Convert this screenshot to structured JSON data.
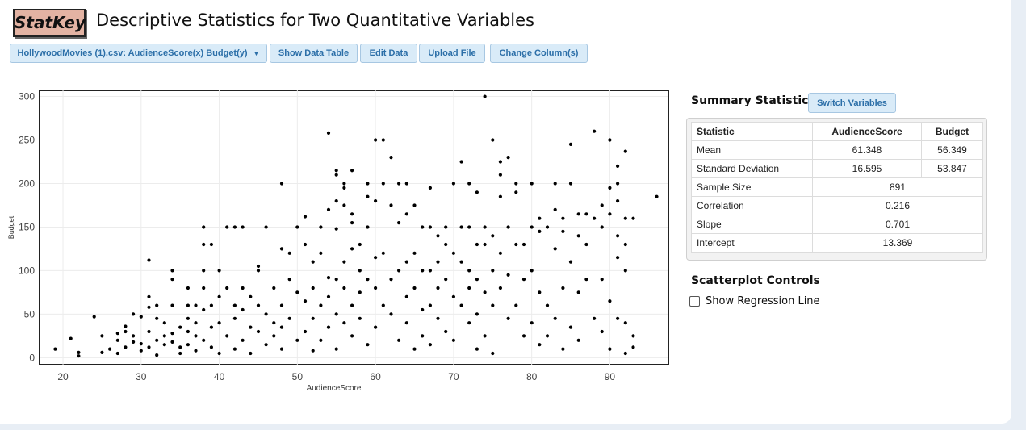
{
  "app": {
    "logo": "StatKey",
    "title": "Descriptive Statistics for Two Quantitative Variables"
  },
  "toolbar": {
    "dataset_label": "HollywoodMovies (1).csv: AudienceScore(x) Budget(y)",
    "show_table": "Show Data Table",
    "edit_data": "Edit Data",
    "upload": "Upload File",
    "change_columns": "Change Column(s)"
  },
  "summary": {
    "title": "Summary Statistics",
    "switch_label": "Switch Variables",
    "headers": [
      "Statistic",
      "AudienceScore",
      "Budget"
    ],
    "rows": [
      {
        "label": "Mean",
        "x": "61.348",
        "y": "56.349"
      },
      {
        "label": "Standard Deviation",
        "x": "16.595",
        "y": "53.847"
      }
    ],
    "single_rows": [
      {
        "label": "Sample Size",
        "value": "891"
      },
      {
        "label": "Correlation",
        "value": "0.216"
      },
      {
        "label": "Slope",
        "value": "0.701"
      },
      {
        "label": "Intercept",
        "value": "13.369"
      }
    ]
  },
  "controls": {
    "title": "Scatterplot Controls",
    "regression_label": "Show Regression Line",
    "regression_checked": false
  },
  "chart_data": {
    "type": "scatter",
    "xlabel": "AudienceScore",
    "ylabel": "Budget",
    "xlim": [
      17,
      97.5
    ],
    "ylim": [
      -8,
      307
    ],
    "xticks": [
      20,
      30,
      40,
      50,
      60,
      70,
      80,
      90
    ],
    "yticks": [
      0,
      50,
      100,
      150,
      200,
      250,
      300
    ],
    "grid": true,
    "points": [
      [
        19,
        10
      ],
      [
        21,
        22
      ],
      [
        22,
        2
      ],
      [
        22,
        6
      ],
      [
        24,
        47
      ],
      [
        25,
        6
      ],
      [
        25,
        25
      ],
      [
        26,
        10
      ],
      [
        27,
        5
      ],
      [
        27,
        20
      ],
      [
        27,
        28
      ],
      [
        28,
        12
      ],
      [
        28,
        30
      ],
      [
        28,
        36
      ],
      [
        29,
        50
      ],
      [
        29,
        18
      ],
      [
        29,
        25
      ],
      [
        30,
        47
      ],
      [
        30,
        8
      ],
      [
        30,
        16
      ],
      [
        31,
        112
      ],
      [
        31,
        70
      ],
      [
        31,
        58
      ],
      [
        31,
        30
      ],
      [
        31,
        12
      ],
      [
        32,
        60
      ],
      [
        32,
        45
      ],
      [
        32,
        20
      ],
      [
        32,
        3
      ],
      [
        33,
        15
      ],
      [
        33,
        25
      ],
      [
        33,
        40
      ],
      [
        34,
        100
      ],
      [
        34,
        90
      ],
      [
        34,
        60
      ],
      [
        34,
        28
      ],
      [
        34,
        18
      ],
      [
        35,
        5
      ],
      [
        35,
        12
      ],
      [
        35,
        35
      ],
      [
        36,
        80
      ],
      [
        36,
        60
      ],
      [
        36,
        45
      ],
      [
        36,
        30
      ],
      [
        36,
        15
      ],
      [
        37,
        60
      ],
      [
        37,
        25
      ],
      [
        37,
        8
      ],
      [
        37,
        40
      ],
      [
        38,
        150
      ],
      [
        38,
        130
      ],
      [
        38,
        100
      ],
      [
        38,
        80
      ],
      [
        38,
        55
      ],
      [
        38,
        20
      ],
      [
        39,
        130
      ],
      [
        39,
        60
      ],
      [
        39,
        35
      ],
      [
        39,
        12
      ],
      [
        40,
        100
      ],
      [
        40,
        70
      ],
      [
        40,
        40
      ],
      [
        40,
        5
      ],
      [
        41,
        150
      ],
      [
        41,
        80
      ],
      [
        41,
        25
      ],
      [
        42,
        150
      ],
      [
        42,
        60
      ],
      [
        42,
        10
      ],
      [
        42,
        45
      ],
      [
        43,
        150
      ],
      [
        43,
        80
      ],
      [
        43,
        55
      ],
      [
        43,
        20
      ],
      [
        44,
        70
      ],
      [
        44,
        35
      ],
      [
        44,
        5
      ],
      [
        45,
        105
      ],
      [
        45,
        100
      ],
      [
        45,
        60
      ],
      [
        45,
        30
      ],
      [
        46,
        150
      ],
      [
        46,
        50
      ],
      [
        46,
        15
      ],
      [
        47,
        80
      ],
      [
        47,
        40
      ],
      [
        47,
        25
      ],
      [
        48,
        200
      ],
      [
        48,
        125
      ],
      [
        48,
        60
      ],
      [
        48,
        35
      ],
      [
        48,
        10
      ],
      [
        49,
        120
      ],
      [
        49,
        90
      ],
      [
        49,
        45
      ],
      [
        50,
        150
      ],
      [
        50,
        75
      ],
      [
        50,
        20
      ],
      [
        51,
        162
      ],
      [
        51,
        130
      ],
      [
        51,
        65
      ],
      [
        51,
        30
      ],
      [
        52,
        110
      ],
      [
        52,
        80
      ],
      [
        52,
        45
      ],
      [
        52,
        8
      ],
      [
        53,
        150
      ],
      [
        53,
        120
      ],
      [
        53,
        60
      ],
      [
        53,
        20
      ],
      [
        54,
        258
      ],
      [
        54,
        170
      ],
      [
        54,
        92
      ],
      [
        54,
        70
      ],
      [
        54,
        35
      ],
      [
        55,
        215
      ],
      [
        55,
        210
      ],
      [
        55,
        180
      ],
      [
        55,
        148
      ],
      [
        55,
        90
      ],
      [
        55,
        50
      ],
      [
        55,
        10
      ],
      [
        56,
        200
      ],
      [
        56,
        195
      ],
      [
        56,
        175
      ],
      [
        56,
        110
      ],
      [
        56,
        80
      ],
      [
        56,
        40
      ],
      [
        57,
        215
      ],
      [
        57,
        165
      ],
      [
        57,
        155
      ],
      [
        57,
        125
      ],
      [
        57,
        60
      ],
      [
        57,
        25
      ],
      [
        58,
        130
      ],
      [
        58,
        100
      ],
      [
        58,
        75
      ],
      [
        58,
        45
      ],
      [
        59,
        200
      ],
      [
        59,
        185
      ],
      [
        59,
        150
      ],
      [
        59,
        90
      ],
      [
        59,
        15
      ],
      [
        60,
        250
      ],
      [
        60,
        180
      ],
      [
        60,
        115
      ],
      [
        60,
        80
      ],
      [
        60,
        35
      ],
      [
        61,
        250
      ],
      [
        61,
        200
      ],
      [
        61,
        120
      ],
      [
        61,
        60
      ],
      [
        62,
        230
      ],
      [
        62,
        175
      ],
      [
        62,
        90
      ],
      [
        62,
        50
      ],
      [
        63,
        200
      ],
      [
        63,
        155
      ],
      [
        63,
        100
      ],
      [
        63,
        20
      ],
      [
        64,
        200
      ],
      [
        64,
        165
      ],
      [
        64,
        110
      ],
      [
        64,
        70
      ],
      [
        64,
        40
      ],
      [
        65,
        175
      ],
      [
        65,
        120
      ],
      [
        65,
        80
      ],
      [
        65,
        10
      ],
      [
        66,
        150
      ],
      [
        66,
        100
      ],
      [
        66,
        55
      ],
      [
        66,
        25
      ],
      [
        67,
        195
      ],
      [
        67,
        150
      ],
      [
        67,
        100
      ],
      [
        67,
        60
      ],
      [
        67,
        15
      ],
      [
        68,
        140
      ],
      [
        68,
        110
      ],
      [
        68,
        80
      ],
      [
        68,
        45
      ],
      [
        69,
        150
      ],
      [
        69,
        130
      ],
      [
        69,
        90
      ],
      [
        69,
        30
      ],
      [
        70,
        200
      ],
      [
        70,
        120
      ],
      [
        70,
        70
      ],
      [
        70,
        20
      ],
      [
        71,
        225
      ],
      [
        71,
        150
      ],
      [
        71,
        110
      ],
      [
        71,
        60
      ],
      [
        72,
        200
      ],
      [
        72,
        150
      ],
      [
        72,
        100
      ],
      [
        72,
        80
      ],
      [
        72,
        40
      ],
      [
        73,
        190
      ],
      [
        73,
        130
      ],
      [
        73,
        90
      ],
      [
        73,
        50
      ],
      [
        73,
        10
      ],
      [
        74,
        300
      ],
      [
        74,
        150
      ],
      [
        74,
        130
      ],
      [
        74,
        75
      ],
      [
        74,
        25
      ],
      [
        75,
        250
      ],
      [
        75,
        140
      ],
      [
        75,
        100
      ],
      [
        75,
        60
      ],
      [
        75,
        5
      ],
      [
        76,
        225
      ],
      [
        76,
        185
      ],
      [
        76,
        210
      ],
      [
        76,
        120
      ],
      [
        76,
        80
      ],
      [
        77,
        230
      ],
      [
        77,
        150
      ],
      [
        77,
        95
      ],
      [
        77,
        45
      ],
      [
        78,
        200
      ],
      [
        78,
        190
      ],
      [
        78,
        130
      ],
      [
        78,
        60
      ],
      [
        79,
        130
      ],
      [
        79,
        90
      ],
      [
        79,
        25
      ],
      [
        80,
        200
      ],
      [
        80,
        150
      ],
      [
        80,
        100
      ],
      [
        80,
        40
      ],
      [
        81,
        160
      ],
      [
        81,
        145
      ],
      [
        81,
        75
      ],
      [
        81,
        15
      ],
      [
        82,
        150
      ],
      [
        82,
        60
      ],
      [
        82,
        25
      ],
      [
        83,
        200
      ],
      [
        83,
        170
      ],
      [
        83,
        125
      ],
      [
        83,
        45
      ],
      [
        84,
        160
      ],
      [
        84,
        145
      ],
      [
        84,
        80
      ],
      [
        84,
        10
      ],
      [
        85,
        245
      ],
      [
        85,
        200
      ],
      [
        85,
        110
      ],
      [
        85,
        35
      ],
      [
        86,
        165
      ],
      [
        86,
        140
      ],
      [
        86,
        75
      ],
      [
        86,
        20
      ],
      [
        87,
        165
      ],
      [
        87,
        130
      ],
      [
        87,
        90
      ],
      [
        88,
        260
      ],
      [
        88,
        160
      ],
      [
        88,
        45
      ],
      [
        89,
        175
      ],
      [
        89,
        150
      ],
      [
        89,
        90
      ],
      [
        89,
        30
      ],
      [
        90,
        250
      ],
      [
        90,
        165
      ],
      [
        90,
        195
      ],
      [
        90,
        65
      ],
      [
        90,
        10
      ],
      [
        91,
        220
      ],
      [
        91,
        200
      ],
      [
        91,
        180
      ],
      [
        91,
        140
      ],
      [
        91,
        115
      ],
      [
        91,
        45
      ],
      [
        92,
        237
      ],
      [
        92,
        160
      ],
      [
        92,
        130
      ],
      [
        92,
        100
      ],
      [
        92,
        40
      ],
      [
        92,
        5
      ],
      [
        93,
        160
      ],
      [
        93,
        25
      ],
      [
        93,
        12
      ],
      [
        96,
        185
      ]
    ]
  }
}
